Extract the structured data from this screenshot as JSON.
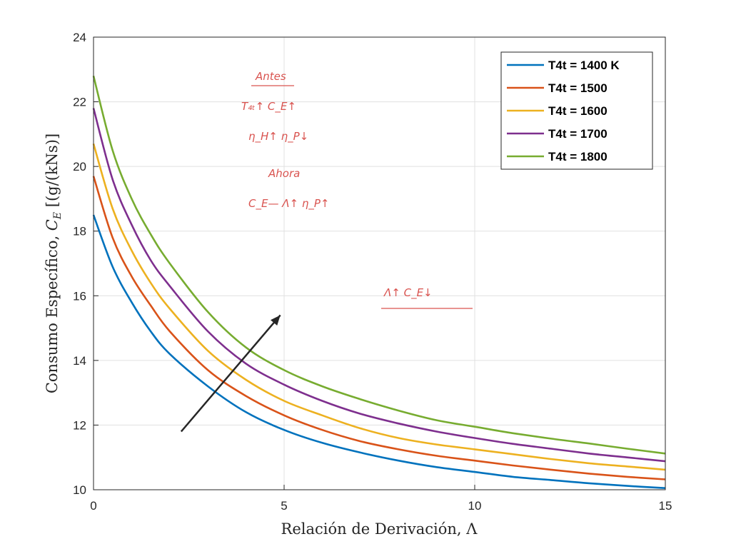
{
  "chart_data": {
    "type": "line",
    "title": "",
    "xlabel": "Relación de Derivación, Λ",
    "ylabel_prefix": "Consumo Específico, ",
    "ylabel_symbol": "C",
    "ylabel_sub": "E",
    "ylabel_units": " [(g/(kNs)]",
    "xlim": [
      0,
      15
    ],
    "ylim": [
      10,
      24
    ],
    "xticks": [
      "0",
      "5",
      "10",
      "15"
    ],
    "yticks": [
      "10",
      "12",
      "14",
      "16",
      "18",
      "20",
      "22",
      "24"
    ],
    "grid": true,
    "legend_position": "top-right",
    "x": [
      0,
      0.5,
      1,
      1.5,
      2,
      3,
      4,
      5,
      6,
      7,
      8,
      9,
      10,
      11,
      12,
      13,
      14,
      15
    ],
    "series": [
      {
        "name": "T4t = 1400 K",
        "color": "#0072BD",
        "values": [
          18.5,
          16.9,
          15.8,
          14.9,
          14.2,
          13.2,
          12.4,
          11.85,
          11.45,
          11.15,
          10.9,
          10.7,
          10.55,
          10.4,
          10.3,
          10.2,
          10.12,
          10.05
        ]
      },
      {
        "name": "T4t = 1500",
        "color": "#D95319",
        "values": [
          19.7,
          17.8,
          16.6,
          15.7,
          14.9,
          13.7,
          12.9,
          12.3,
          11.85,
          11.5,
          11.25,
          11.05,
          10.9,
          10.75,
          10.62,
          10.5,
          10.4,
          10.32
        ]
      },
      {
        "name": "T4t = 1600",
        "color": "#EDB120",
        "values": [
          20.7,
          18.7,
          17.4,
          16.4,
          15.6,
          14.3,
          13.4,
          12.75,
          12.3,
          11.9,
          11.6,
          11.4,
          11.25,
          11.1,
          10.95,
          10.82,
          10.72,
          10.62
        ]
      },
      {
        "name": "T4t = 1700",
        "color": "#7E2F8E",
        "values": [
          21.8,
          19.6,
          18.2,
          17.1,
          16.3,
          14.9,
          13.9,
          13.25,
          12.75,
          12.35,
          12.05,
          11.8,
          11.6,
          11.42,
          11.27,
          11.12,
          11.0,
          10.88
        ]
      },
      {
        "name": "T4t = 1800",
        "color": "#77AC30",
        "values": [
          22.8,
          20.5,
          19.0,
          17.9,
          17.0,
          15.5,
          14.4,
          13.7,
          13.2,
          12.8,
          12.45,
          12.15,
          11.95,
          11.75,
          11.58,
          11.43,
          11.27,
          11.12
        ]
      }
    ],
    "arrow": {
      "from": [
        2.3,
        11.8
      ],
      "to": [
        4.9,
        15.4
      ],
      "color": "#262626"
    }
  },
  "annotations": {
    "antes": "Antes",
    "line1": "T₄ₜ↑   C_E↑",
    "line2": "η_H↑   η_P↓",
    "ahora": "Ahora",
    "line3": "C_E—     Λ↑   η_P↑",
    "right": "Λ↑    C_E↓"
  }
}
